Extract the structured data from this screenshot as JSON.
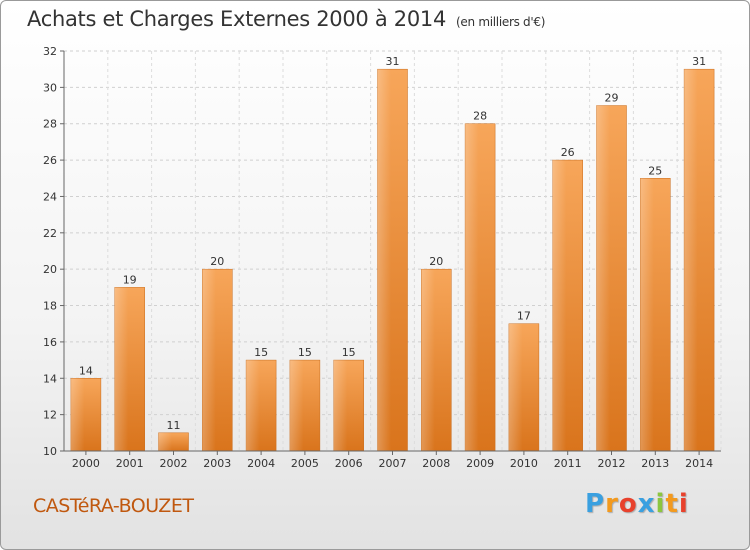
{
  "header": {
    "title": "Achats et Charges Externes 2000 à 2014",
    "unit": "(en milliers d'€)"
  },
  "footer": {
    "commune": "CASTéRA-BOUZET",
    "logo_letters": [
      "P",
      "r",
      "o",
      "x",
      "i",
      "t",
      "i"
    ],
    "logo_colors": [
      "#3aa0e0",
      "#f39a1e",
      "#e8412c",
      "#3aa0e0",
      "#8cc63f",
      "#f39a1e",
      "#e8412c"
    ]
  },
  "chart_data": {
    "type": "bar",
    "categories": [
      "2000",
      "2001",
      "2002",
      "2003",
      "2004",
      "2005",
      "2006",
      "2007",
      "2008",
      "2009",
      "2010",
      "2011",
      "2012",
      "2013",
      "2014"
    ],
    "values": [
      14,
      19,
      11,
      20,
      15,
      15,
      15,
      31,
      20,
      28,
      17,
      26,
      29,
      25,
      31
    ],
    "ylim": [
      10,
      32
    ],
    "yticks": [
      10,
      12,
      14,
      16,
      18,
      20,
      22,
      24,
      26,
      28,
      30,
      32
    ],
    "grid": true,
    "bar_color": "#f08c30"
  }
}
